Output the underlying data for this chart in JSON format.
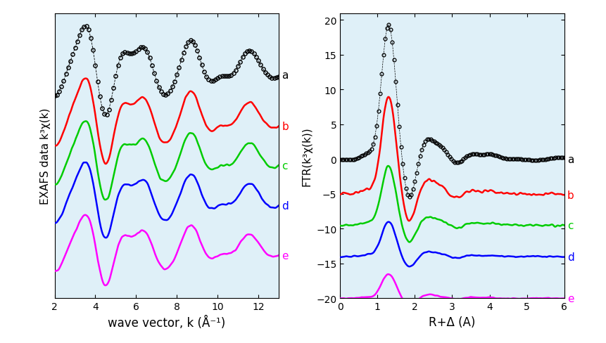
{
  "left_xlabel": "wave vector, k (Å⁻¹)",
  "left_ylabel": "EXAFS data k³χ(k)",
  "right_xlabel": "R+Δ (A)",
  "right_ylabel": "FTR(k³χ(k))",
  "left_xlim": [
    2,
    13
  ],
  "right_xlim": [
    0,
    6
  ],
  "right_ylim": [
    -20,
    21
  ],
  "right_yticks": [
    -20,
    -15,
    -10,
    -5,
    0,
    5,
    10,
    15,
    20
  ],
  "colors": [
    "black",
    "red",
    "#00cc00",
    "blue",
    "magenta"
  ],
  "labels": [
    "a",
    "b",
    "c",
    "d",
    "e"
  ],
  "offsets_left": [
    6,
    1,
    -3,
    -7,
    -12
  ],
  "offsets_right": [
    0,
    -5,
    -9.5,
    -14,
    -20
  ],
  "background": "#dff0f8"
}
